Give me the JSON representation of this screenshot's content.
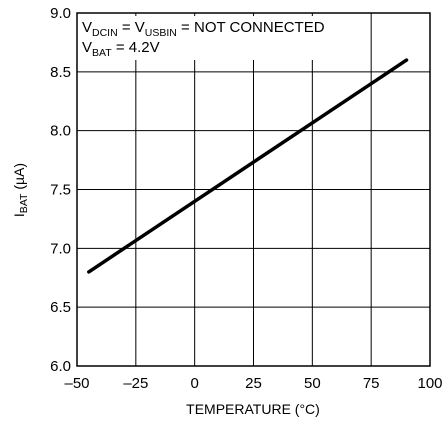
{
  "chart_data": {
    "type": "line",
    "x": [
      -45,
      90
    ],
    "series": [
      {
        "values": [
          6.8,
          8.6
        ]
      }
    ],
    "xlim": [
      -50,
      100
    ],
    "ylim": [
      6.0,
      9.0
    ],
    "xticks": [
      "–50",
      "–25",
      "0",
      "25",
      "50",
      "75",
      "100"
    ],
    "yticks": [
      "6.0",
      "6.5",
      "7.0",
      "7.5",
      "8.0",
      "8.5",
      "9.0"
    ],
    "xlabel": "TEMPERATURE (°C)",
    "ylabel": {
      "main": "I",
      "sub": "BAT",
      "unit": " (µA)"
    },
    "annotation": {
      "line1": {
        "v1": "V",
        "v1_sub": "DCIN",
        "eq1": " = V",
        "v2_sub": "USBIN",
        "rest": " = NOT CONNECTED"
      },
      "line2": {
        "v": "V",
        "v_sub": "BAT",
        "rest": " = 4.2V"
      }
    },
    "grid": true,
    "line_color": "#000000",
    "grid_color": "#000000"
  }
}
